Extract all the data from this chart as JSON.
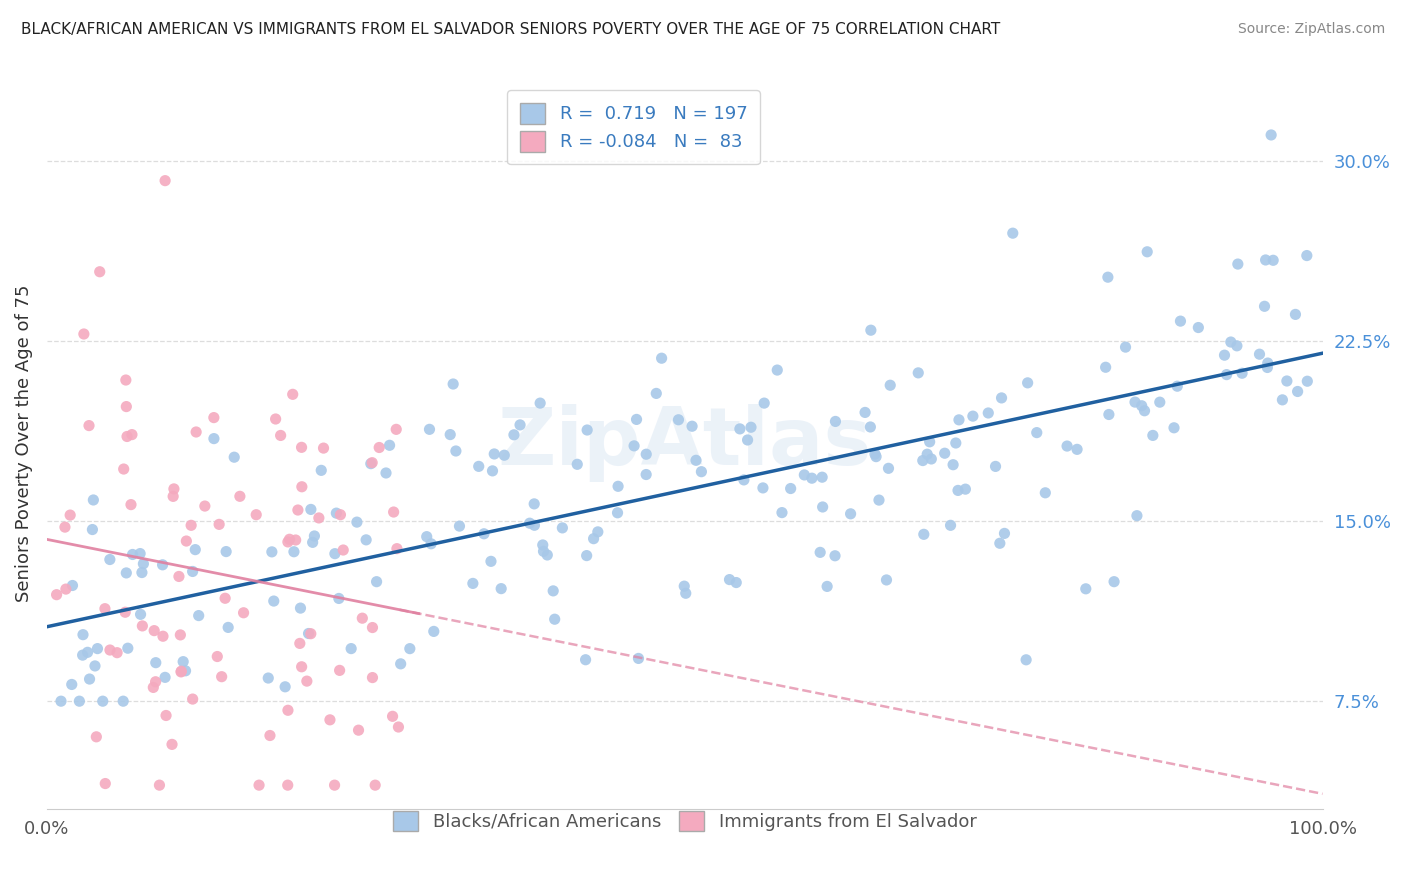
{
  "title": "BLACK/AFRICAN AMERICAN VS IMMIGRANTS FROM EL SALVADOR SENIORS POVERTY OVER THE AGE OF 75 CORRELATION CHART",
  "source": "Source: ZipAtlas.com",
  "ylabel": "Seniors Poverty Over the Age of 75",
  "xlim": [
    0,
    1.0
  ],
  "ylim": [
    0.03,
    0.335
  ],
  "yticks": [
    0.075,
    0.15,
    0.225,
    0.3
  ],
  "ytick_labels": [
    "7.5%",
    "15.0%",
    "22.5%",
    "30.0%"
  ],
  "xticks": [
    0.0,
    1.0
  ],
  "xtick_labels": [
    "0.0%",
    "100.0%"
  ],
  "blue_R": 0.719,
  "blue_N": 197,
  "pink_R": -0.084,
  "pink_N": 83,
  "blue_color": "#a8c8e8",
  "pink_color": "#f4aabf",
  "blue_line_color": "#2060a0",
  "pink_line_color": "#e080a0",
  "watermark": "ZipAtlas",
  "legend_label_blue": "Blacks/African Americans",
  "legend_label_pink": "Immigrants from El Salvador",
  "background_color": "#ffffff",
  "grid_color": "#dddddd",
  "blue_ytick_color": "#4a90d9",
  "legend_text_color": "#3a7bbf",
  "title_color": "#222222",
  "source_color": "#888888",
  "ylabel_color": "#333333"
}
